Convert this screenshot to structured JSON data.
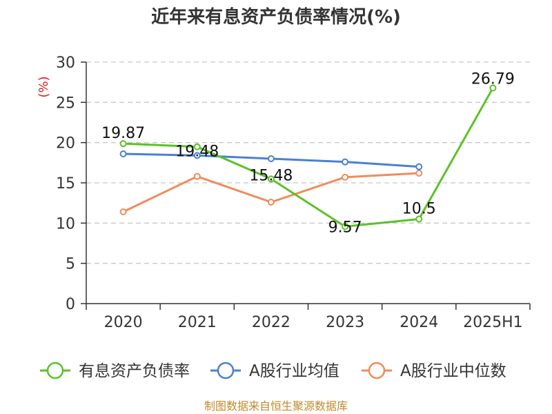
{
  "chart_data": {
    "type": "line",
    "title": "近年来有息资产负债率情况(%)",
    "ylabel": "(%)",
    "xlabel": "",
    "categories": [
      "2020",
      "2021",
      "2022",
      "2023",
      "2024",
      "2025H1"
    ],
    "ylim": [
      0,
      30
    ],
    "yticks": [
      0,
      5,
      10,
      15,
      20,
      25,
      30
    ],
    "grid": true,
    "legend_position": "bottom",
    "series": [
      {
        "name": "有息资产负债率",
        "color": "#5cc127",
        "values": [
          19.87,
          19.48,
          15.48,
          9.57,
          10.5,
          26.79
        ],
        "labels": [
          "19.87",
          "19.48",
          "15.48",
          "9.57",
          "10.5",
          "26.79"
        ]
      },
      {
        "name": "A股行业均值",
        "color": "#4a7fd6",
        "values": [
          18.6,
          18.4,
          18.0,
          17.6,
          17.0,
          null
        ]
      },
      {
        "name": "A股行业中位数",
        "color": "#f28a5a",
        "values": [
          11.4,
          15.8,
          12.6,
          15.7,
          16.2,
          null
        ]
      }
    ]
  },
  "footer": {
    "source": "制图数据来自恒生聚源数据库"
  }
}
